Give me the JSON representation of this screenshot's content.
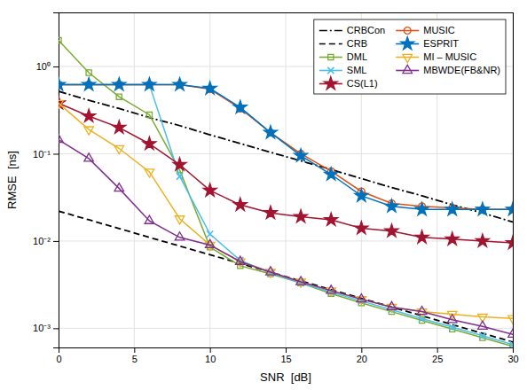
{
  "chart_data": {
    "type": "line",
    "log": "y",
    "grid": true,
    "legend": "upper right",
    "xlabel": "SNR  [dB]",
    "ylabel": "RMSE  [ns]",
    "x": [
      0,
      2,
      4,
      6,
      8,
      10,
      12,
      14,
      16,
      18,
      20,
      22,
      24,
      26,
      28,
      30
    ],
    "xlim": [
      0,
      30
    ],
    "xticks": [
      0,
      5,
      10,
      15,
      20,
      25,
      30
    ],
    "ylim": [
      0.0006025595860743578,
      4.168693834703354
    ],
    "yticks": [
      {
        "value": 0.001,
        "label": "10⁻³"
      },
      {
        "value": 0.01,
        "label": "10⁻²"
      },
      {
        "value": 0.1,
        "label": "10⁻¹"
      },
      {
        "value": 1,
        "label": "10⁰"
      }
    ],
    "series": [
      {
        "name": "CRBCon",
        "color": "#000000",
        "line_style": "dashdot",
        "marker": "none",
        "values": [
          0.52,
          0.41,
          0.33,
          0.26,
          0.21,
          0.165,
          0.131,
          0.104,
          0.083,
          0.066,
          0.052,
          0.041,
          0.033,
          0.026,
          0.021,
          0.0165
        ]
      },
      {
        "name": "CRB",
        "color": "#000000",
        "line_style": "dashed",
        "marker": "none",
        "values": [
          0.022,
          0.0175,
          0.0139,
          0.011,
          0.00876,
          0.00696,
          0.00553,
          0.00439,
          0.00349,
          0.00277,
          0.0022,
          0.00175,
          0.00139,
          0.0011,
          0.000876,
          0.000696
        ]
      },
      {
        "name": "DML",
        "color": "#77ac30",
        "line_style": "solid",
        "marker": "square",
        "values": [
          2.0,
          0.85,
          0.45,
          0.28,
          0.065,
          0.0085,
          0.0052,
          0.0042,
          0.0033,
          0.0025,
          0.00195,
          0.00155,
          0.00123,
          0.00098,
          0.00078,
          0.00062
        ]
      },
      {
        "name": "SML",
        "color": "#4dbeee",
        "line_style": "solid",
        "marker": "x",
        "values": [
          0.62,
          0.62,
          0.62,
          0.62,
          0.055,
          0.012,
          0.006,
          0.0043,
          0.0033,
          0.0026,
          0.00205,
          0.00163,
          0.00129,
          0.00103,
          0.00082,
          0.00065
        ]
      },
      {
        "name": "CS(L1)",
        "color": "#a2142f",
        "line_style": "solid",
        "marker": "star",
        "values": [
          0.38,
          0.27,
          0.2,
          0.13,
          0.075,
          0.038,
          0.026,
          0.021,
          0.019,
          0.0175,
          0.014,
          0.013,
          0.011,
          0.0105,
          0.01,
          0.0095
        ]
      },
      {
        "name": "MUSIC",
        "color": "#d95319",
        "line_style": "solid",
        "marker": "circle",
        "values": [
          0.62,
          0.62,
          0.62,
          0.62,
          0.62,
          0.55,
          0.33,
          0.175,
          0.1,
          0.063,
          0.037,
          0.027,
          0.025,
          0.024,
          0.023,
          0.023
        ]
      },
      {
        "name": "ESPRIT",
        "color": "#0072bd",
        "line_style": "solid",
        "marker": "star",
        "values": [
          0.62,
          0.62,
          0.62,
          0.62,
          0.62,
          0.56,
          0.34,
          0.175,
          0.095,
          0.058,
          0.033,
          0.025,
          0.023,
          0.023,
          0.023,
          0.023
        ]
      },
      {
        "name": "MI – MUSIC",
        "color": "#edb120",
        "line_style": "solid",
        "marker": "triangle-down",
        "values": [
          0.38,
          0.19,
          0.115,
          0.062,
          0.018,
          0.009,
          0.0058,
          0.0044,
          0.0034,
          0.0027,
          0.00215,
          0.00175,
          0.00155,
          0.00145,
          0.00135,
          0.0013
        ]
      },
      {
        "name": "MBWDE(FB&NR)",
        "color": "#7e2f8e",
        "line_style": "solid",
        "marker": "triangle-up",
        "values": [
          0.145,
          0.088,
          0.04,
          0.017,
          0.011,
          0.009,
          0.0058,
          0.0044,
          0.0034,
          0.0027,
          0.00215,
          0.00175,
          0.00155,
          0.00125,
          0.00105,
          0.00085
        ]
      }
    ]
  }
}
